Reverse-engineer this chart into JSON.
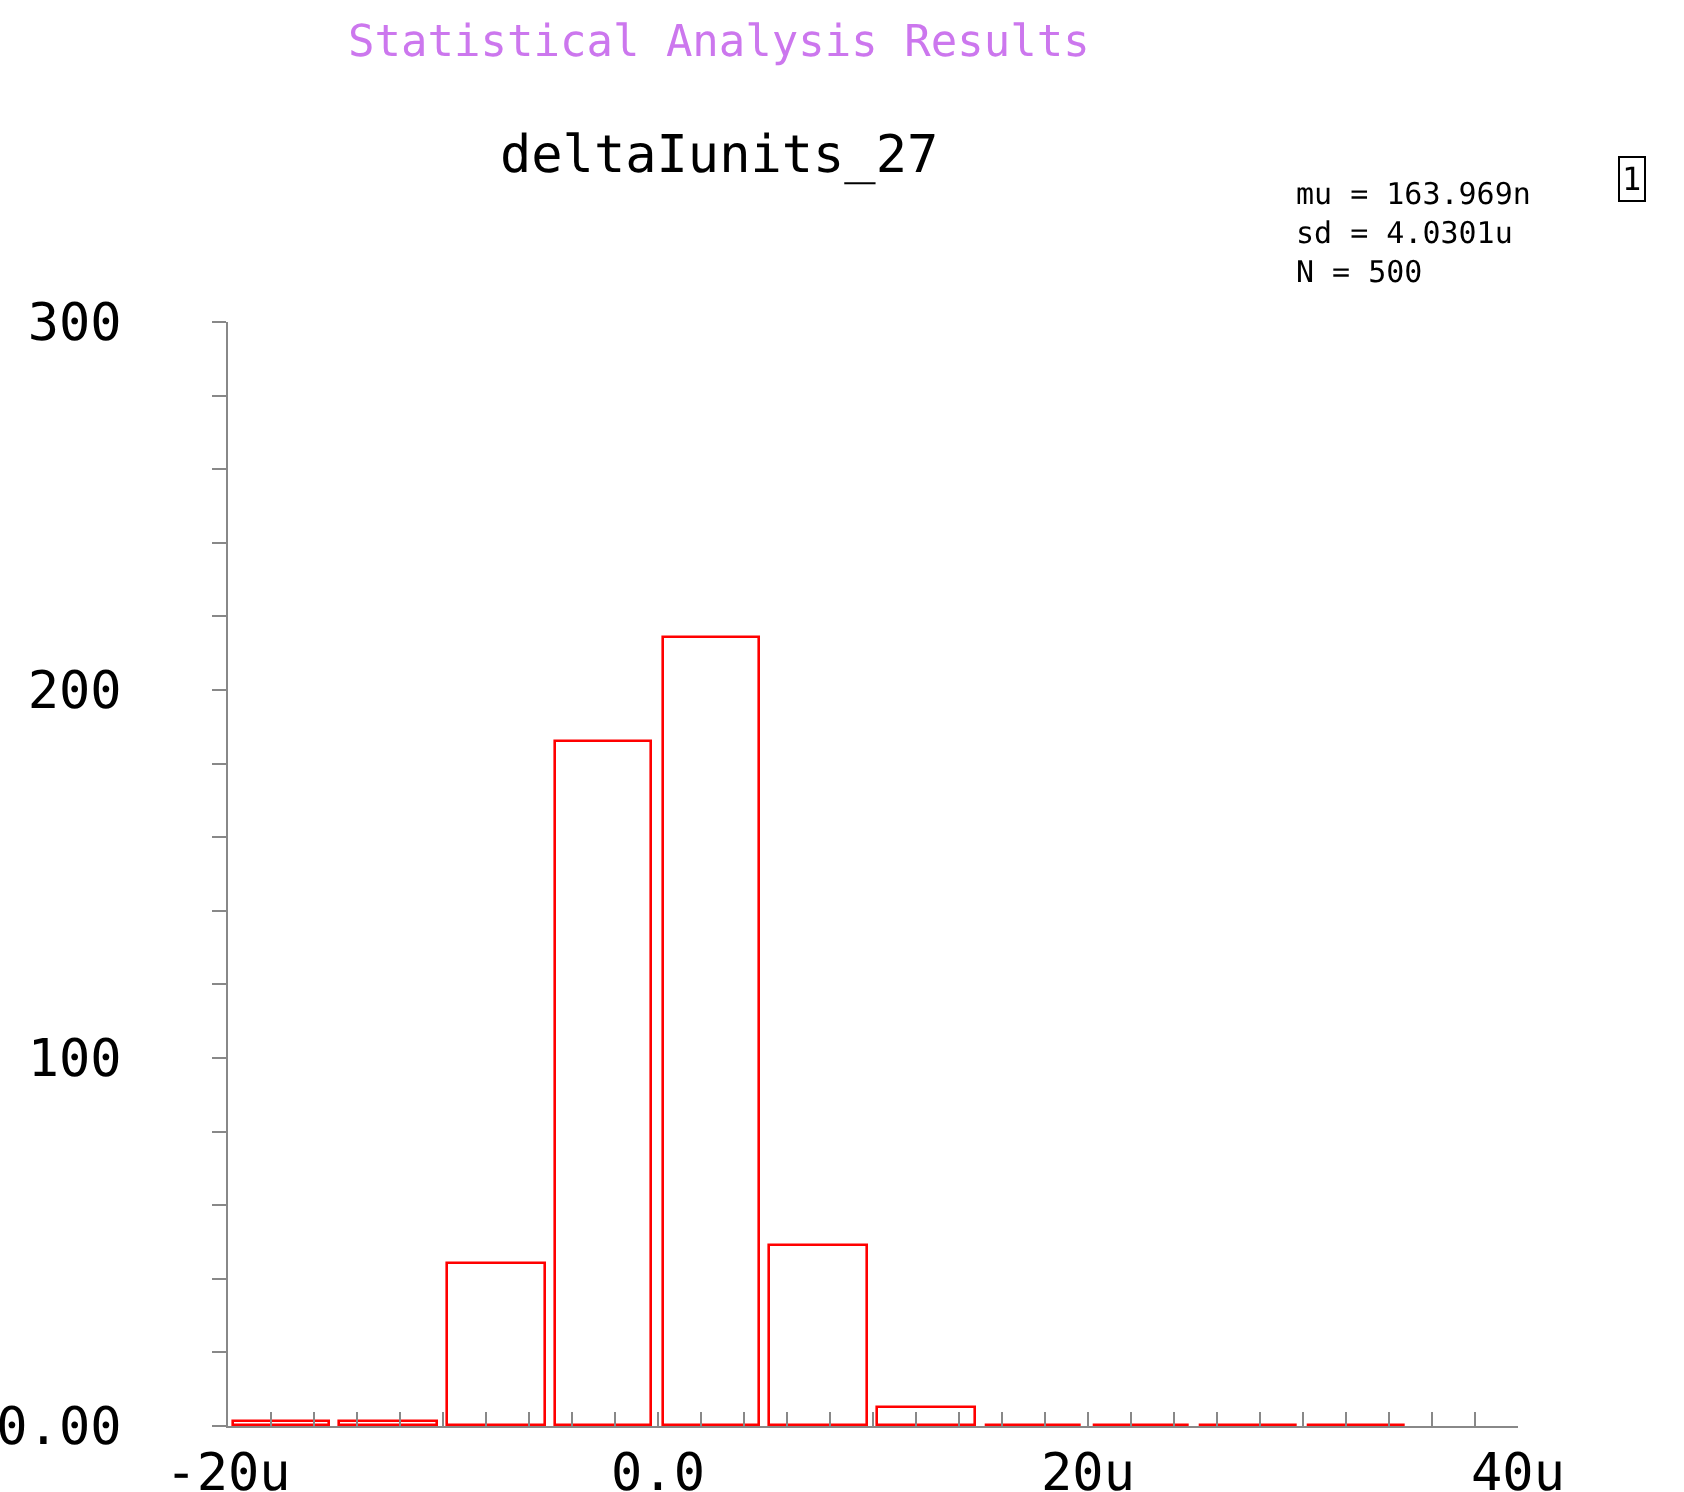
{
  "chart_data": {
    "type": "histogram",
    "title": "Statistical Analysis Results",
    "subtitle": "deltaIunits_27",
    "bins": [
      -20,
      -15,
      -10,
      -5,
      0,
      5,
      10,
      15,
      20,
      25,
      30,
      35
    ],
    "values": [
      1,
      1,
      44,
      186,
      214,
      49,
      5,
      0,
      0,
      0,
      0
    ],
    "color": "#ff0000",
    "xlim": [
      -20,
      40
    ],
    "xticks": [
      {
        "value": -20,
        "label": "-20u"
      },
      {
        "value": -18,
        "label": null
      },
      {
        "value": -16,
        "label": null
      },
      {
        "value": -14,
        "label": null
      },
      {
        "value": -12,
        "label": null
      },
      {
        "value": -10,
        "label": null
      },
      {
        "value": -8,
        "label": null
      },
      {
        "value": -6,
        "label": null
      },
      {
        "value": -4,
        "label": null
      },
      {
        "value": -2,
        "label": null
      },
      {
        "value": 0,
        "label": "0.0"
      },
      {
        "value": 2,
        "label": null
      },
      {
        "value": 4,
        "label": null
      },
      {
        "value": 6,
        "label": null
      },
      {
        "value": 8,
        "label": null
      },
      {
        "value": 10,
        "label": null
      },
      {
        "value": 12,
        "label": null
      },
      {
        "value": 14,
        "label": null
      },
      {
        "value": 16,
        "label": null
      },
      {
        "value": 18,
        "label": null
      },
      {
        "value": 20,
        "label": "20u"
      },
      {
        "value": 22,
        "label": null
      },
      {
        "value": 24,
        "label": null
      },
      {
        "value": 26,
        "label": null
      },
      {
        "value": 28,
        "label": null
      },
      {
        "value": 30,
        "label": null
      },
      {
        "value": 32,
        "label": null
      },
      {
        "value": 34,
        "label": null
      },
      {
        "value": 36,
        "label": null
      },
      {
        "value": 38,
        "label": null
      },
      {
        "value": 40,
        "label": "40u"
      }
    ],
    "ylim": [
      0,
      300
    ],
    "yticks": [
      {
        "value": 0,
        "label": "0.00"
      },
      {
        "value": 20,
        "label": null
      },
      {
        "value": 40,
        "label": null
      },
      {
        "value": 60,
        "label": null
      },
      {
        "value": 80,
        "label": null
      },
      100,
      {
        "value": 120,
        "label": null
      },
      {
        "value": 140,
        "label": null
      },
      {
        "value": 160,
        "label": null
      },
      {
        "value": 180,
        "label": null
      },
      200,
      {
        "value": 220,
        "label": null
      },
      {
        "value": 240,
        "label": null
      },
      {
        "value": 260,
        "label": null
      },
      {
        "value": 280,
        "label": null
      },
      300
    ],
    "annotations": [
      "mu = 163.969n",
      "sd = 4.0301u",
      "N = 500",
      "1"
    ]
  }
}
